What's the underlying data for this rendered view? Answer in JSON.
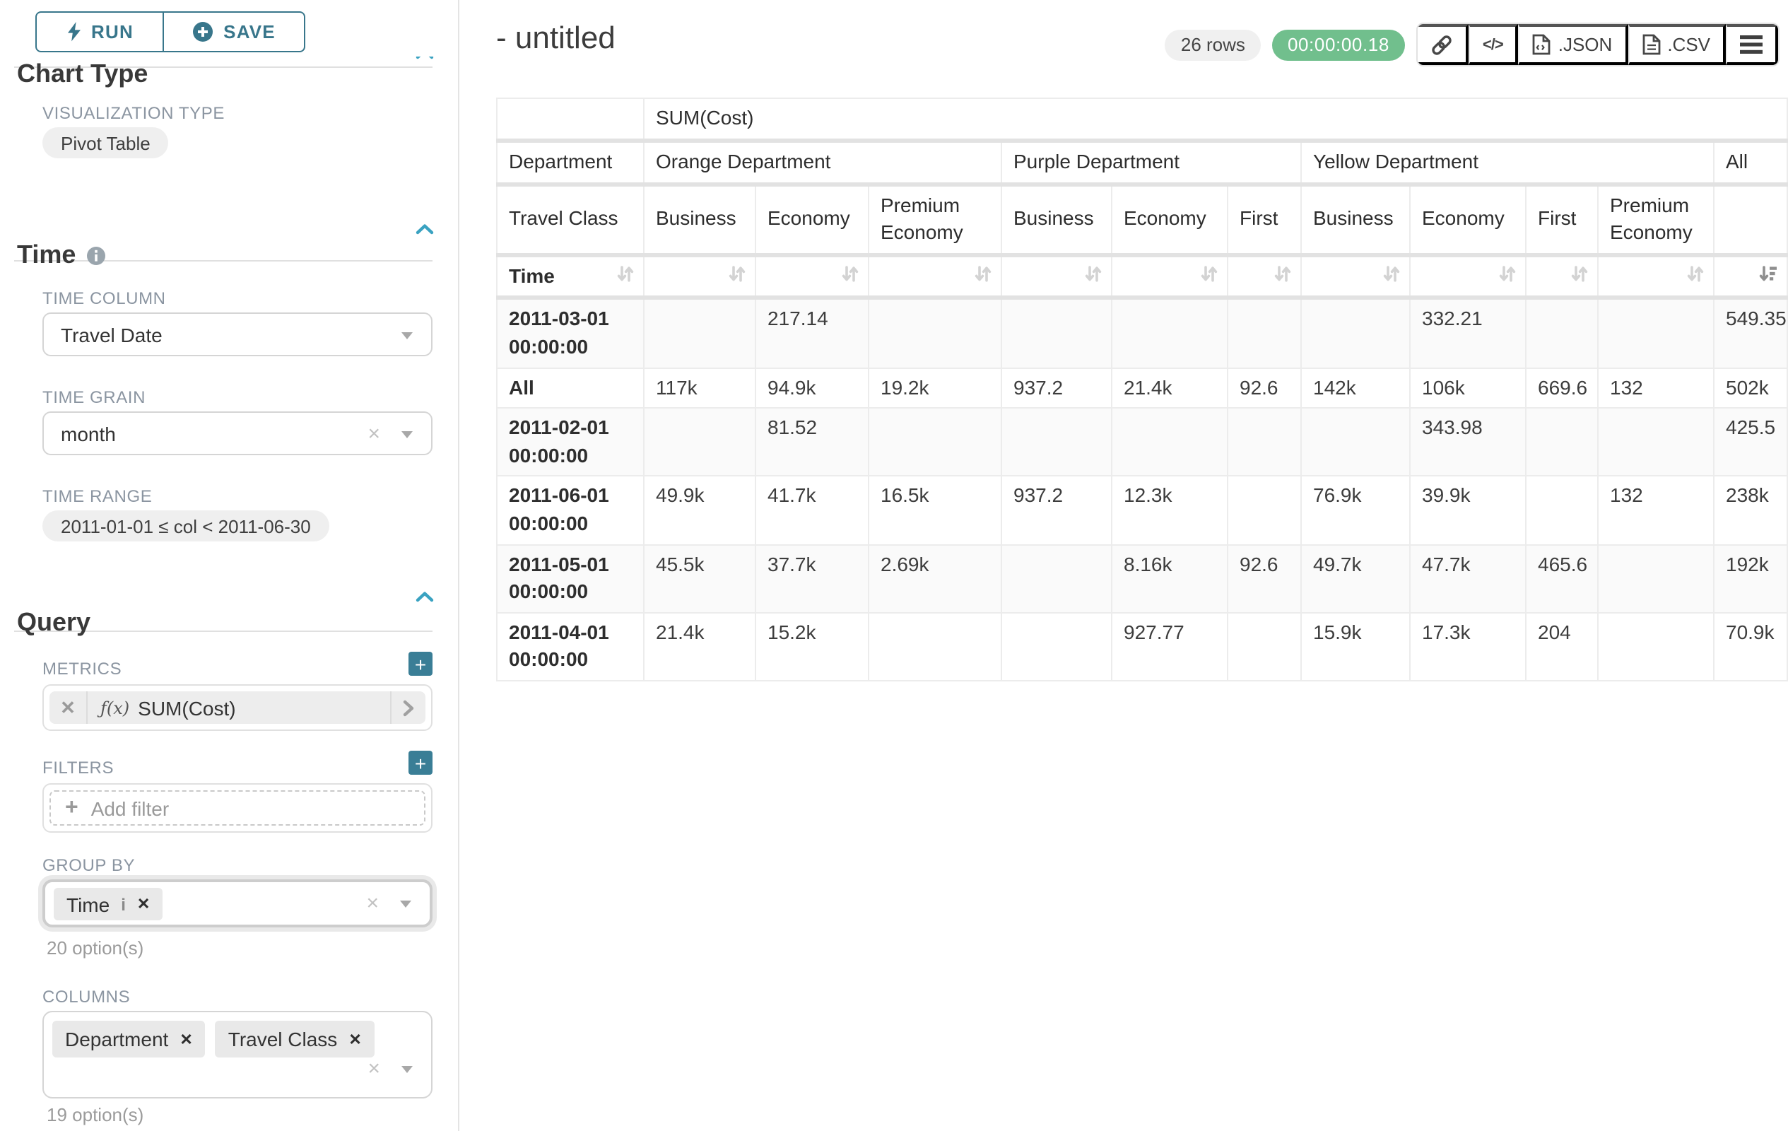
{
  "controls": {
    "run_label": "RUN",
    "save_label": "SAVE",
    "chart_type_heading": "Chart Type",
    "viz_label": "VISUALIZATION TYPE",
    "viz_value": "Pivot Table",
    "time": {
      "title": "Time",
      "column_label": "TIME COLUMN",
      "column_value": "Travel Date",
      "grain_label": "TIME GRAIN",
      "grain_value": "month",
      "range_label": "TIME RANGE",
      "range_value": "2011-01-01 ≤ col < 2011-06-30"
    },
    "query": {
      "title": "Query",
      "metrics_label": "METRICS",
      "metric_fx": "ƒ(x)",
      "metric_value": "SUM(Cost)",
      "filters_label": "FILTERS",
      "add_filter_label": "Add filter",
      "group_by_label": "GROUP BY",
      "group_by_values": [
        "Time"
      ],
      "group_by_hint": "20 option(s)",
      "columns_label": "COLUMNS",
      "columns_values": [
        "Department",
        "Travel Class"
      ],
      "columns_hint": "19 option(s)"
    }
  },
  "header": {
    "title": "- untitled",
    "rows_badge": "26 rows",
    "time_badge": "00:00:00.18",
    "json_label": ".JSON",
    "csv_label": ".CSV"
  },
  "icons": {
    "run": "lightning",
    "save": "plus-circle",
    "section_info": "info-circle",
    "section_collapse": "chevron-up",
    "select_caret": "caret-down",
    "select_clear": "x",
    "metric_function": "f(x)",
    "metric_expand": "chevron-right",
    "add_control": "plus",
    "share": "link",
    "embed": "code",
    "export_json": "file-json",
    "export_csv": "file-csv",
    "more": "hamburger-menu",
    "sort_neutral": "sort-arrows",
    "sort_active": "sort-amount-desc"
  },
  "colors": {
    "accent_teal": "#38768b",
    "bright_teal": "#3aa2c1",
    "add_button_teal": "#3a7e96",
    "timer_green": "#71bf8d",
    "pill_gray": "#efefef",
    "table_border": "#ececec"
  },
  "table": {
    "metric_header": "SUM(Cost)",
    "row_dims": {
      "department": "Department",
      "travel_class": "Travel Class",
      "time": "Time"
    },
    "col_groups": [
      {
        "label": "Orange Department",
        "cols": [
          "Business",
          "Economy",
          "Premium Economy"
        ]
      },
      {
        "label": "Purple Department",
        "cols": [
          "Business",
          "Economy",
          "First"
        ]
      },
      {
        "label": "Yellow Department",
        "cols": [
          "Business",
          "Economy",
          "First",
          "Premium Economy"
        ]
      },
      {
        "label": "All",
        "cols": [
          ""
        ]
      }
    ],
    "rows": [
      {
        "label": "2011-03-01 00:00:00",
        "values": [
          "",
          "217.14",
          "",
          "",
          "",
          "",
          "",
          "332.21",
          "",
          "",
          "549.35"
        ]
      },
      {
        "label": "All",
        "values": [
          "117k",
          "94.9k",
          "19.2k",
          "937.2",
          "21.4k",
          "92.6",
          "142k",
          "106k",
          "669.6",
          "132",
          "502k"
        ]
      },
      {
        "label": "2011-02-01 00:00:00",
        "values": [
          "",
          "81.52",
          "",
          "",
          "",
          "",
          "",
          "343.98",
          "",
          "",
          "425.5"
        ]
      },
      {
        "label": "2011-06-01 00:00:00",
        "values": [
          "49.9k",
          "41.7k",
          "16.5k",
          "937.2",
          "12.3k",
          "",
          "76.9k",
          "39.9k",
          "",
          "132",
          "238k"
        ]
      },
      {
        "label": "2011-05-01 00:00:00",
        "values": [
          "45.5k",
          "37.7k",
          "2.69k",
          "",
          "8.16k",
          "92.6",
          "49.7k",
          "47.7k",
          "465.6",
          "",
          "192k"
        ]
      },
      {
        "label": "2011-04-01 00:00:00",
        "values": [
          "21.4k",
          "15.2k",
          "",
          "",
          "927.77",
          "",
          "15.9k",
          "17.3k",
          "204",
          "",
          "70.9k"
        ]
      }
    ]
  }
}
